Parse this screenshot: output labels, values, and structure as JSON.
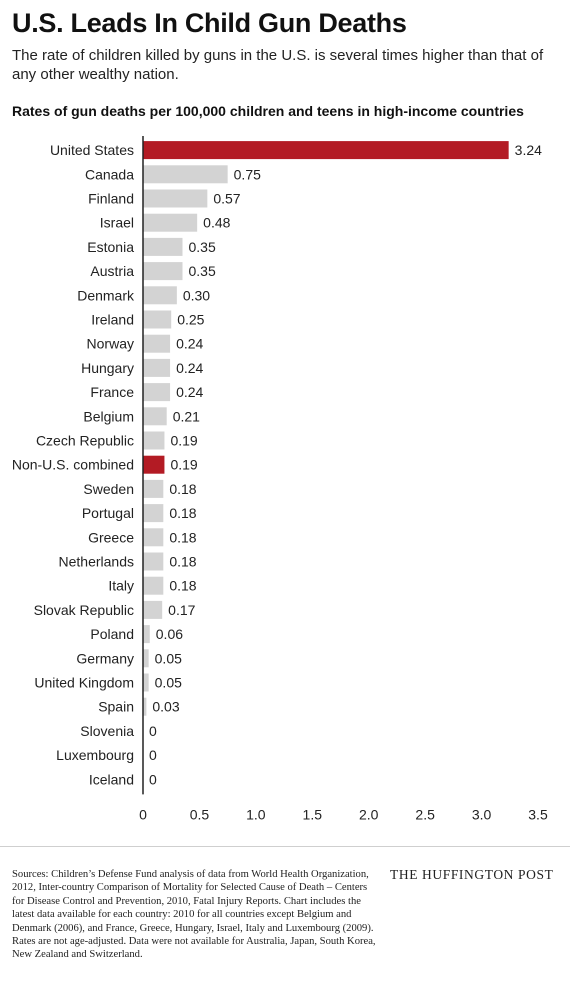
{
  "header": {
    "title": "U.S. Leads In Child Gun Deaths",
    "subtitle": "The rate of children killed by guns in the U.S. is several times higher than that of any other wealthy nation."
  },
  "chart_data": {
    "type": "bar",
    "orientation": "horizontal",
    "title": "Rates of gun deaths per 100,000 children and teens in high-income countries",
    "xlabel": "",
    "ylabel": "",
    "xlim": [
      0,
      3.5
    ],
    "xticks": [
      0,
      0.5,
      1.0,
      1.5,
      2.0,
      2.5,
      3.0,
      3.5
    ],
    "xtick_labels": [
      "0",
      "0.5",
      "1.0",
      "1.5",
      "2.0",
      "2.5",
      "3.0",
      "3.5"
    ],
    "grid": false,
    "categories": [
      "United States",
      "Canada",
      "Finland",
      "Israel",
      "Estonia",
      "Austria",
      "Denmark",
      "Ireland",
      "Norway",
      "Hungary",
      "France",
      "Belgium",
      "Czech Republic",
      "Non-U.S. combined",
      "Sweden",
      "Portugal",
      "Greece",
      "Netherlands",
      "Italy",
      "Slovak Republic",
      "Poland",
      "Germany",
      "United Kingdom",
      "Spain",
      "Slovenia",
      "Luxembourg",
      "Iceland"
    ],
    "values": [
      3.24,
      0.75,
      0.57,
      0.48,
      0.35,
      0.35,
      0.3,
      0.25,
      0.24,
      0.24,
      0.24,
      0.21,
      0.19,
      0.19,
      0.18,
      0.18,
      0.18,
      0.18,
      0.18,
      0.17,
      0.06,
      0.05,
      0.05,
      0.03,
      0,
      0,
      0
    ],
    "value_labels": [
      "3.24",
      "0.75",
      "0.57",
      "0.48",
      "0.35",
      "0.35",
      "0.30",
      "0.25",
      "0.24",
      "0.24",
      "0.24",
      "0.21",
      "0.19",
      "0.19",
      "0.18",
      "0.18",
      "0.18",
      "0.18",
      "0.18",
      "0.17",
      "0.06",
      "0.05",
      "0.05",
      "0.03",
      "0",
      "0",
      "0"
    ],
    "highlighted": [
      "United States",
      "Non-U.S. combined"
    ],
    "colors": {
      "highlight": "#b31b24",
      "default": "#d3d3d3",
      "axis": "#222222"
    }
  },
  "footer": {
    "sources": "Sources: Children’s Defense Fund analysis of data from World Health Organization, 2012, Inter-country Comparison of Mortality for Selected Cause of Death – Centers for Disease Control and Prevention, 2010, Fatal Injury Reports. Chart includes the latest data available for each country: 2010 for all countries except Belgium and Denmark (2006), and France, Greece, Hungary, Israel, Italy and Luxembourg (2009). Rates are not age-adjusted. Data were not available for Australia, Japan, South Korea, New Zealand and Switzerland.",
    "brand": "THE HUFFINGTON POST"
  }
}
